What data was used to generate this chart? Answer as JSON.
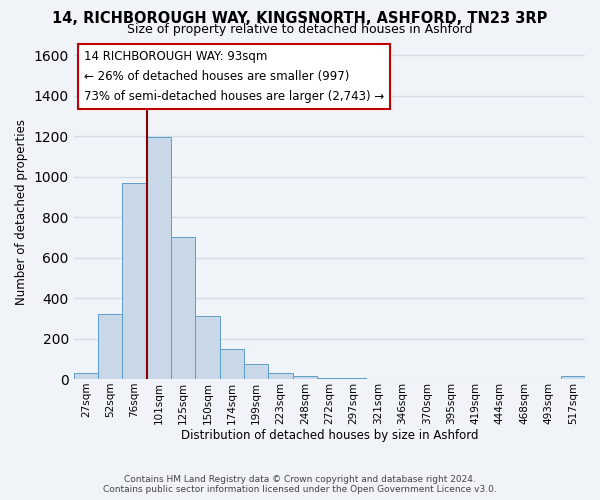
{
  "title": "14, RICHBOROUGH WAY, KINGSNORTH, ASHFORD, TN23 3RP",
  "subtitle": "Size of property relative to detached houses in Ashford",
  "xlabel": "Distribution of detached houses by size in Ashford",
  "ylabel": "Number of detached properties",
  "footnote1": "Contains HM Land Registry data © Crown copyright and database right 2024.",
  "footnote2": "Contains public sector information licensed under the Open Government Licence v3.0.",
  "bin_labels": [
    "27sqm",
    "52sqm",
    "76sqm",
    "101sqm",
    "125sqm",
    "150sqm",
    "174sqm",
    "199sqm",
    "223sqm",
    "248sqm",
    "272sqm",
    "297sqm",
    "321sqm",
    "346sqm",
    "370sqm",
    "395sqm",
    "419sqm",
    "444sqm",
    "468sqm",
    "493sqm",
    "517sqm"
  ],
  "bar_values": [
    30,
    320,
    970,
    1195,
    700,
    310,
    150,
    75,
    30,
    15,
    5,
    5,
    0,
    0,
    0,
    0,
    0,
    0,
    0,
    0,
    15
  ],
  "bar_color": "#c8d8e8",
  "bar_edge_color": "#5a9ec9",
  "vline_x_idx": 3,
  "vline_color": "#8b0000",
  "ylim": [
    0,
    1650
  ],
  "yticks": [
    0,
    200,
    400,
    600,
    800,
    1000,
    1200,
    1400,
    1600
  ],
  "annotation_line1": "14 RICHBOROUGH WAY: 93sqm",
  "annotation_line2": "← 26% of detached houses are smaller (997)",
  "annotation_line3": "73% of semi-detached houses are larger (2,743) →",
  "annotation_box_color": "white",
  "annotation_box_edge": "#c00000",
  "background_color": "#f0f4f8",
  "grid_color": "#d0dce8",
  "title_fontsize": 10.5,
  "subtitle_fontsize": 9
}
